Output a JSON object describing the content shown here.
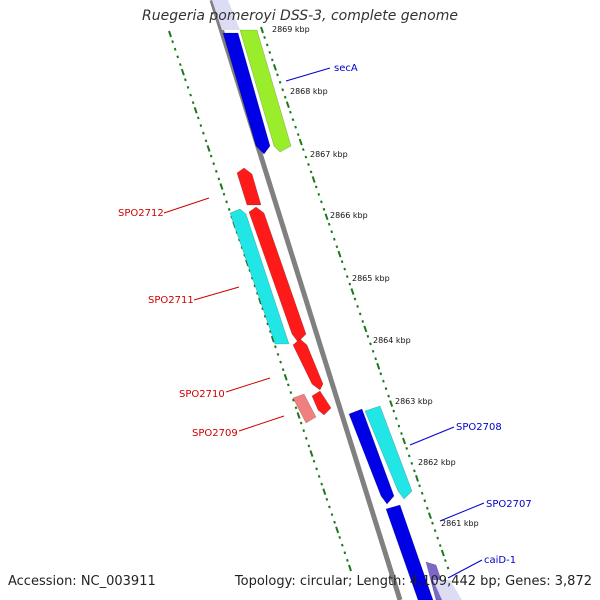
{
  "title": "Ruegeria pomeroyi DSS-3, complete genome",
  "footer": {
    "accession": "Accession: NC_003911",
    "topology": "Topology: circular; Length: 4,109,442 bp; Genes: 3,872"
  },
  "kbp_labels": [
    "2869 kbp",
    "2868 kbp",
    "2867 kbp",
    "2866 kbp",
    "2865 kbp",
    "2864 kbp",
    "2863 kbp",
    "2862 kbp",
    "2861 kbp"
  ],
  "gene_labels": {
    "secA": "secA",
    "spo2712": "SPO2712",
    "spo2711": "SPO2711",
    "spo2710": "SPO2710",
    "spo2709": "SPO2709",
    "spo2708": "SPO2708",
    "spo2707": "SPO2707",
    "caiD": "caiD-1"
  },
  "colors": {
    "backbone": "#808080",
    "blue": "#0000e6",
    "lime": "#9aed2a",
    "red": "#ff1a1a",
    "pink": "#f08080",
    "cyan": "#22e6e6",
    "purple": "#7b68c8",
    "tick_green": "#1a7a1a",
    "label_red": "#d00000",
    "label_blue": "#0000cc"
  }
}
